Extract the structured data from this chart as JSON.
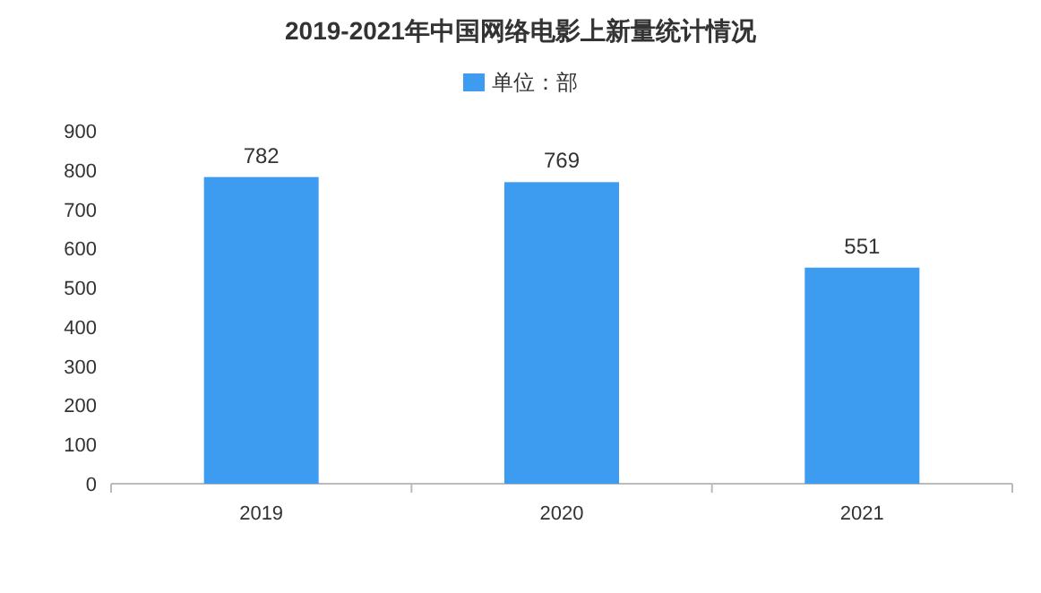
{
  "chart_data": {
    "type": "bar",
    "title": "2019-2021年中国网络电影上新量统计情况",
    "categories": [
      "2019",
      "2020",
      "2021"
    ],
    "series": [
      {
        "name": "单位：部",
        "color": "#3d9cf0",
        "values": [
          782,
          769,
          551
        ]
      }
    ],
    "ylim": [
      0,
      900
    ],
    "yticks": [
      0,
      100,
      200,
      300,
      400,
      500,
      600,
      700,
      800,
      900
    ],
    "data_labels": true,
    "legend": "top",
    "grid": false
  }
}
